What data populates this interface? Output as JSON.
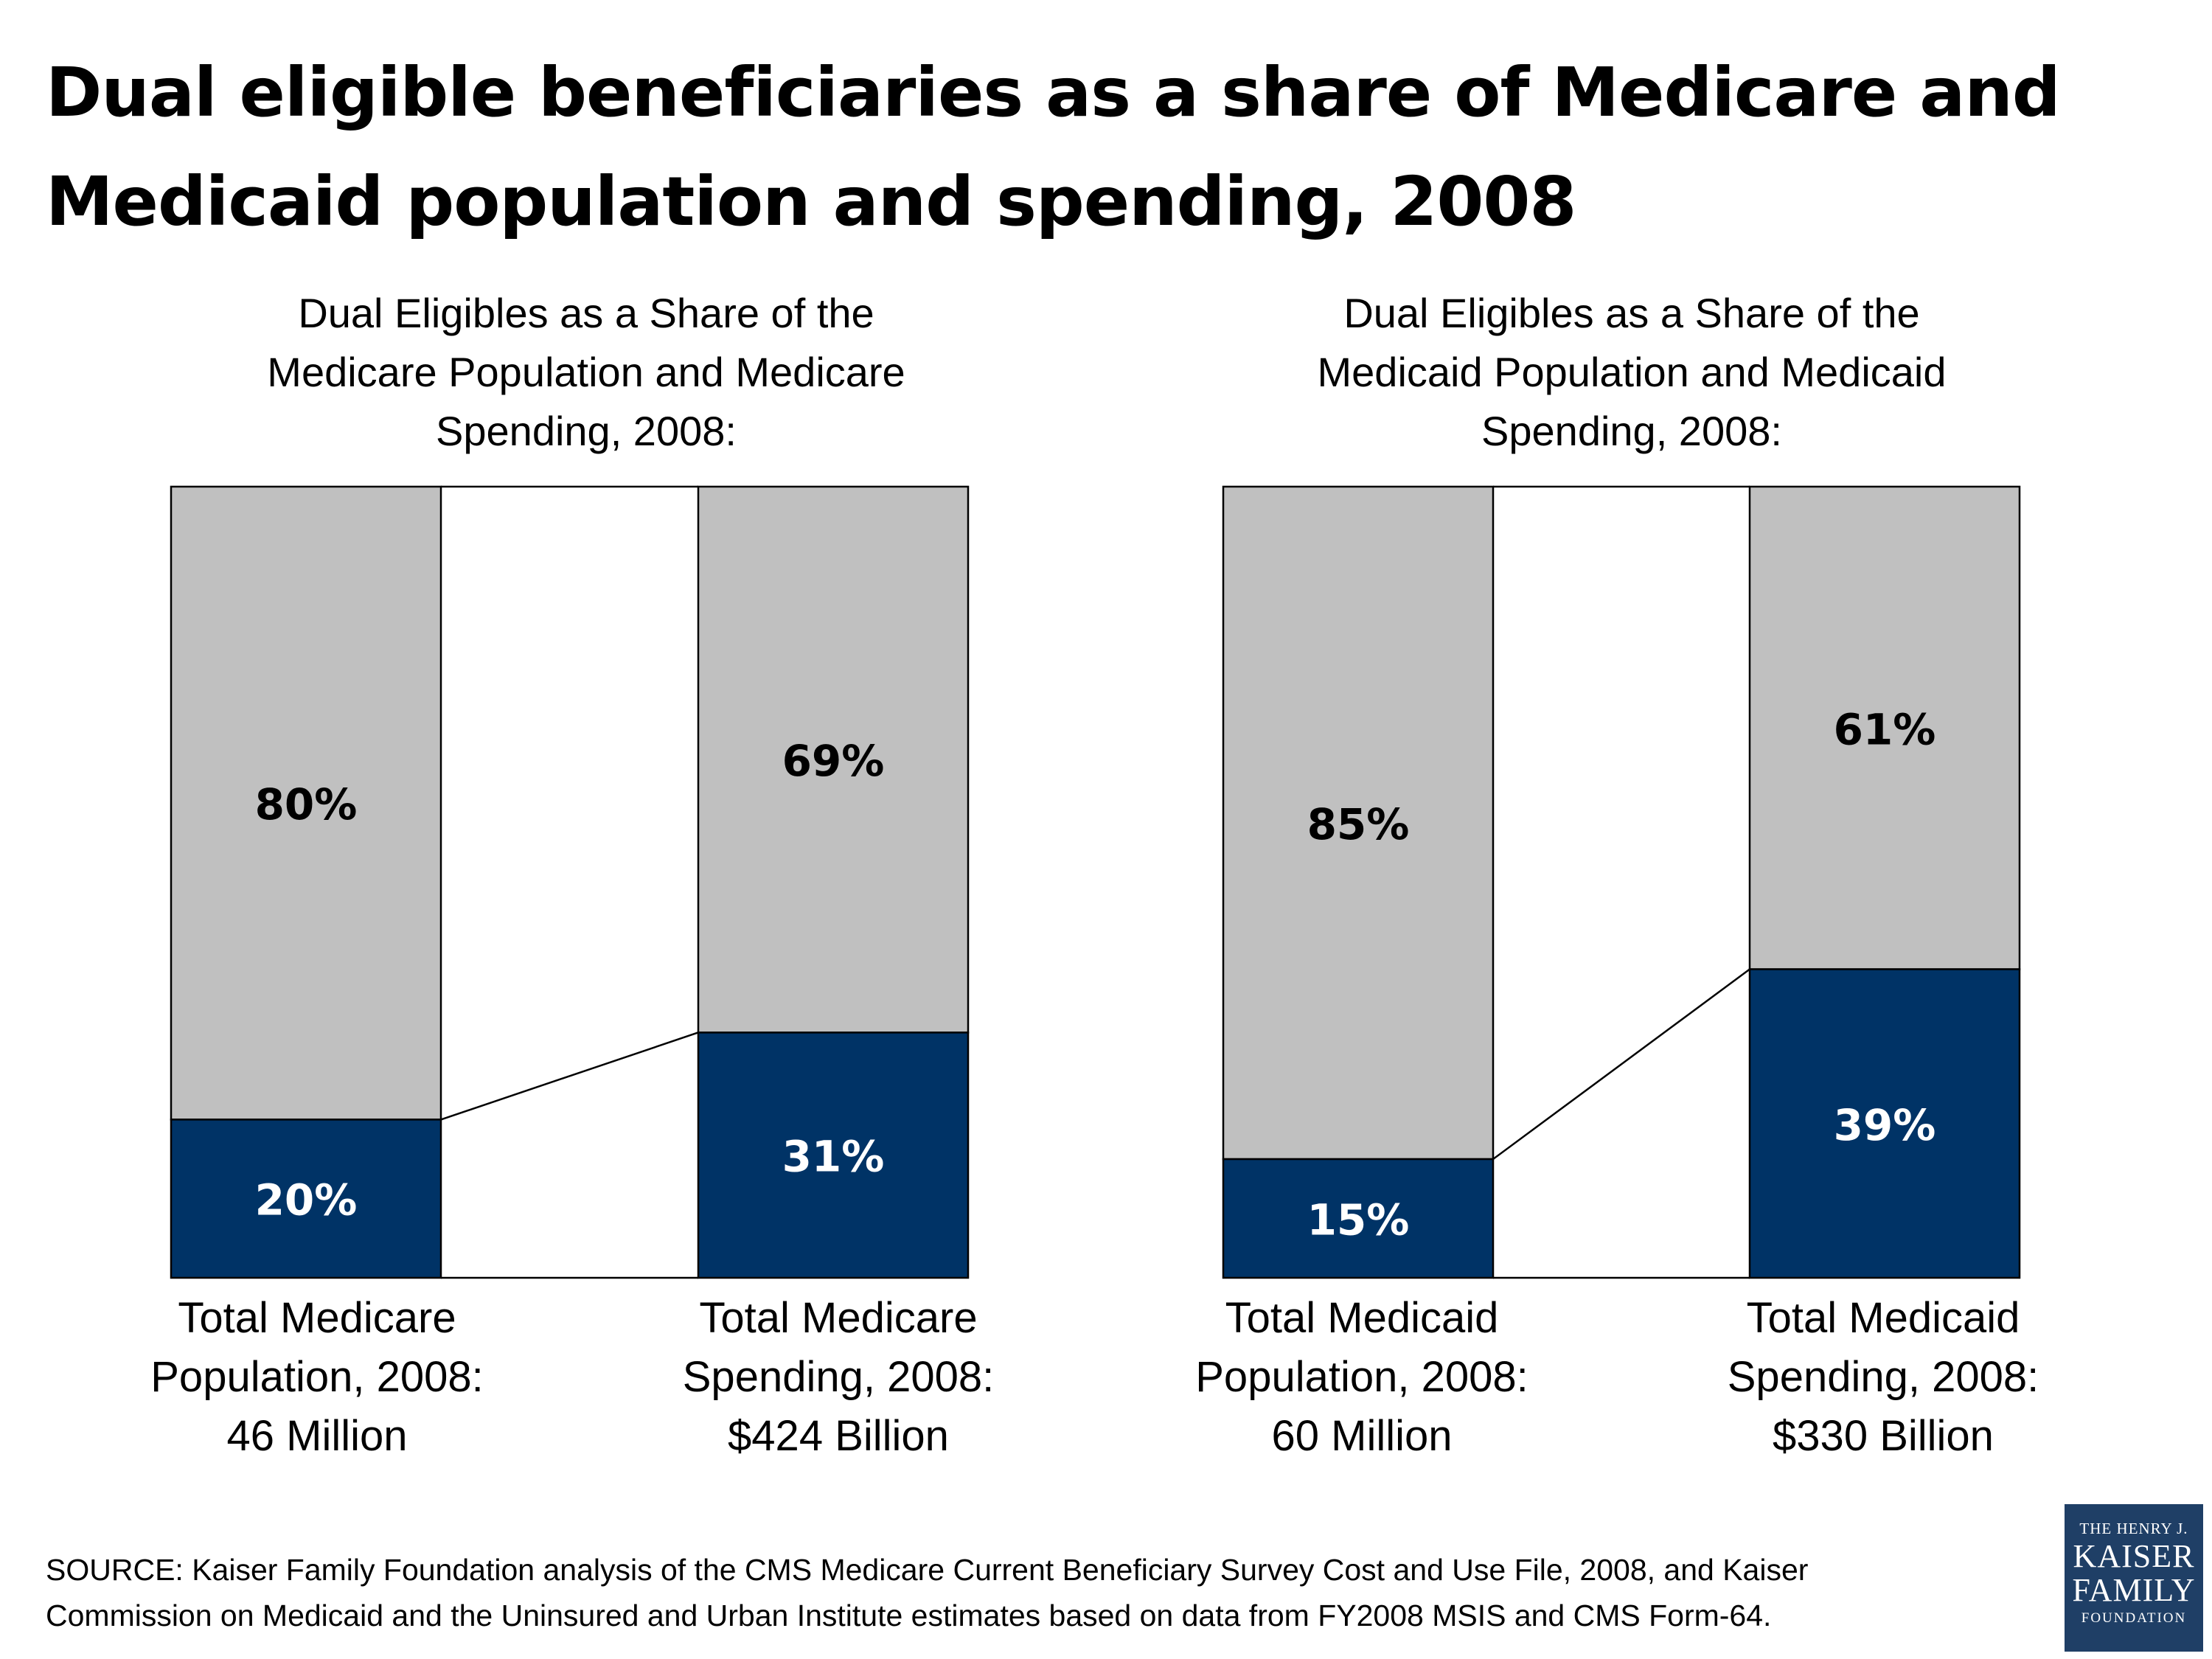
{
  "title_line1": "Dual eligible beneficiaries as a share of Medicare and",
  "title_line2": "Medicaid population and spending, 2008",
  "colors": {
    "dual_eligible": "#003366",
    "other": "#c0c0c0",
    "outline": "#000000",
    "label_dark": "#000000",
    "label_light": "#ffffff"
  },
  "chart_data": [
    {
      "type": "bar",
      "stacked": true,
      "title_lines": [
        "Dual Eligibles as a Share of the",
        "Medicare Population and Medicare",
        "Spending, 2008:"
      ],
      "categories": [
        [
          "Total Medicare",
          "Population, 2008:",
          "46 Million"
        ],
        [
          "Total Medicare",
          "Spending, 2008:",
          "$424 Billion"
        ]
      ],
      "series": [
        {
          "values": [
            20,
            31
          ],
          "labels": [
            "20%",
            "31%"
          ]
        },
        {
          "values": [
            80,
            69
          ],
          "labels": [
            "80%",
            "69%"
          ]
        }
      ],
      "ylim": [
        0,
        100
      ]
    },
    {
      "type": "bar",
      "stacked": true,
      "title_lines": [
        "Dual Eligibles as a Share of the",
        "Medicaid Population and Medicaid",
        "Spending, 2008:"
      ],
      "categories": [
        [
          "Total Medicaid",
          "Population, 2008:",
          "60 Million"
        ],
        [
          "Total Medicaid",
          "Spending, 2008:",
          "$330 Billion"
        ]
      ],
      "series": [
        {
          "values": [
            15,
            39
          ],
          "labels": [
            "15%",
            "39%"
          ]
        },
        {
          "values": [
            85,
            61
          ],
          "labels": [
            "85%",
            "61%"
          ]
        }
      ],
      "ylim": [
        0,
        100
      ]
    }
  ],
  "source_lines": [
    "SOURCE: Kaiser Family Foundation analysis of the CMS Medicare Current Beneficiary Survey Cost and Use File, 2008, and Kaiser",
    "Commission on Medicaid and the Uninsured and Urban Institute estimates based on data from FY2008 MSIS and CMS Form-64."
  ],
  "logo_lines": [
    "THE HENRY J.",
    "KAISER",
    "FAMILY",
    "FOUNDATION"
  ]
}
